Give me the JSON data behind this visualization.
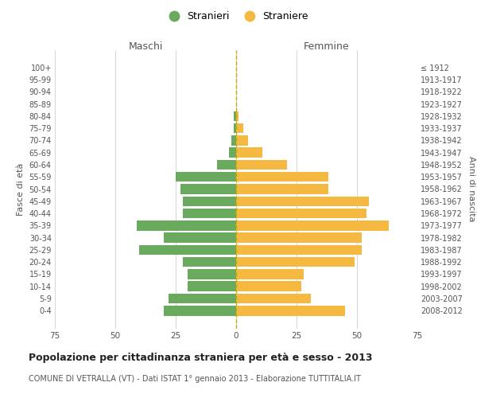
{
  "age_groups": [
    "0-4",
    "5-9",
    "10-14",
    "15-19",
    "20-24",
    "25-29",
    "30-34",
    "35-39",
    "40-44",
    "45-49",
    "50-54",
    "55-59",
    "60-64",
    "65-69",
    "70-74",
    "75-79",
    "80-84",
    "85-89",
    "90-94",
    "95-99",
    "100+"
  ],
  "birth_years": [
    "2008-2012",
    "2003-2007",
    "1998-2002",
    "1993-1997",
    "1988-1992",
    "1983-1987",
    "1978-1982",
    "1973-1977",
    "1968-1972",
    "1963-1967",
    "1958-1962",
    "1953-1957",
    "1948-1952",
    "1943-1947",
    "1938-1942",
    "1933-1937",
    "1928-1932",
    "1923-1927",
    "1918-1922",
    "1913-1917",
    "≤ 1912"
  ],
  "maschi": [
    30,
    28,
    20,
    20,
    22,
    40,
    30,
    41,
    22,
    22,
    23,
    25,
    8,
    3,
    2,
    1,
    1,
    0,
    0,
    0,
    0
  ],
  "femmine": [
    45,
    31,
    27,
    28,
    49,
    52,
    52,
    63,
    54,
    55,
    38,
    38,
    21,
    11,
    5,
    3,
    1,
    0,
    0,
    0,
    0
  ],
  "male_color": "#6aaa5e",
  "female_color": "#f5b942",
  "dashed_color": "#c8aa00",
  "grid_color": "#d0d0d0",
  "bg_color": "#ffffff",
  "title": "Popolazione per cittadinanza straniera per età e sesso - 2013",
  "subtitle": "COMUNE DI VETRALLA (VT) - Dati ISTAT 1° gennaio 2013 - Elaborazione TUTTITALIA.IT",
  "xlabel_left": "Maschi",
  "xlabel_right": "Femmine",
  "ylabel_left": "Fasce di età",
  "ylabel_right": "Anni di nascita",
  "legend_male": "Stranieri",
  "legend_female": "Straniere",
  "xlim": 75,
  "bar_height": 0.82
}
